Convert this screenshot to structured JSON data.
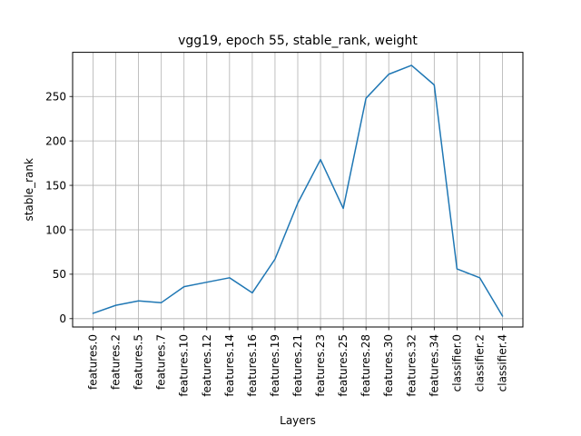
{
  "chart_data": {
    "type": "line",
    "title": "vgg19, epoch 55, stable_rank, weight",
    "xlabel": "Layers",
    "ylabel": "stable_rank",
    "categories": [
      "features.0",
      "features.2",
      "features.5",
      "features.7",
      "features.10",
      "features.12",
      "features.14",
      "features.16",
      "features.19",
      "features.21",
      "features.23",
      "features.25",
      "features.28",
      "features.30",
      "features.32",
      "features.34",
      "classifier.0",
      "classifier.2",
      "classifier.4"
    ],
    "series": [
      {
        "values": [
          6,
          15,
          20,
          18,
          36,
          41,
          46,
          29,
          67,
          130,
          179,
          124,
          248,
          275,
          285,
          263,
          56,
          46,
          3
        ],
        "color": "#1f77b4"
      }
    ],
    "ylim": [
      -9.4,
      299.7
    ],
    "yticks": [
      0,
      50,
      100,
      150,
      200,
      250
    ],
    "grid": true
  }
}
